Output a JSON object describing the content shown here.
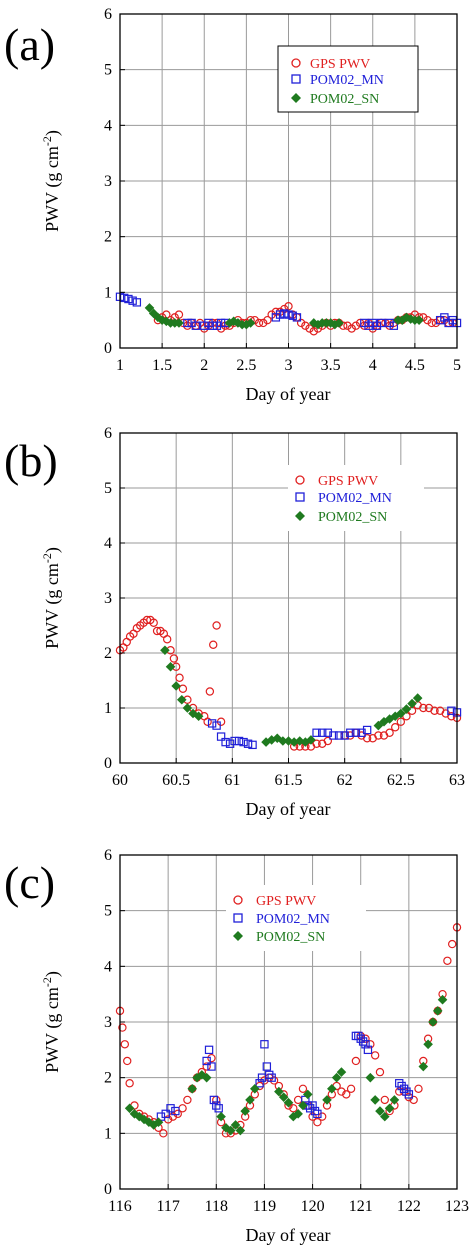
{
  "chart_data": [
    {
      "type": "scatter",
      "panel_label": "(a)",
      "xlabel": "Day of year",
      "ylabel": "PWV (g cm",
      "ylabel_exp": "-2",
      "ylabel_end": ")",
      "xlim": [
        1,
        5
      ],
      "ylim": [
        0,
        6
      ],
      "x_ticks": [
        1,
        1.5,
        2,
        2.5,
        3,
        3.5,
        4,
        4.5,
        5
      ],
      "y_ticks": [
        0,
        1,
        2,
        3,
        4,
        5,
        6
      ],
      "grid": true,
      "legend_position": "top-right",
      "series": [
        {
          "name": "GPS PWV",
          "color": "#e02020",
          "marker": "circle",
          "x": [
            1.45,
            1.5,
            1.55,
            1.6,
            1.65,
            1.7,
            1.75,
            1.8,
            1.85,
            1.9,
            1.95,
            2.0,
            2.05,
            2.1,
            2.15,
            2.2,
            2.25,
            2.3,
            2.35,
            2.4,
            2.45,
            2.5,
            2.55,
            2.6,
            2.65,
            2.7,
            2.75,
            2.8,
            2.85,
            2.9,
            2.95,
            3.0,
            3.05,
            3.1,
            3.15,
            3.2,
            3.25,
            3.3,
            3.35,
            3.4,
            3.45,
            3.5,
            3.55,
            3.6,
            3.65,
            3.7,
            3.75,
            3.8,
            3.85,
            3.9,
            3.95,
            4.0,
            4.05,
            4.1,
            4.15,
            4.2,
            4.25,
            4.3,
            4.35,
            4.4,
            4.45,
            4.5,
            4.55,
            4.6,
            4.65,
            4.7,
            4.75,
            4.8,
            4.85,
            4.9,
            4.95
          ],
          "y": [
            0.5,
            0.55,
            0.6,
            0.5,
            0.55,
            0.6,
            0.45,
            0.4,
            0.45,
            0.4,
            0.45,
            0.35,
            0.4,
            0.45,
            0.45,
            0.35,
            0.4,
            0.4,
            0.45,
            0.5,
            0.45,
            0.45,
            0.5,
            0.5,
            0.45,
            0.45,
            0.5,
            0.6,
            0.65,
            0.65,
            0.7,
            0.75,
            0.6,
            0.55,
            0.45,
            0.4,
            0.35,
            0.3,
            0.35,
            0.4,
            0.45,
            0.4,
            0.45,
            0.45,
            0.4,
            0.4,
            0.35,
            0.4,
            0.45,
            0.4,
            0.45,
            0.35,
            0.4,
            0.45,
            0.45,
            0.4,
            0.45,
            0.5,
            0.5,
            0.55,
            0.55,
            0.6,
            0.55,
            0.55,
            0.5,
            0.45,
            0.45,
            0.5,
            0.5,
            0.45,
            0.45
          ]
        },
        {
          "name": "POM02_MN",
          "color": "#2020d8",
          "marker": "square",
          "x": [
            1.0,
            1.05,
            1.1,
            1.15,
            1.2,
            1.8,
            1.85,
            1.9,
            2.0,
            2.05,
            2.1,
            2.15,
            2.2,
            2.25,
            2.85,
            2.9,
            2.95,
            3.0,
            3.05,
            3.1,
            3.9,
            3.95,
            4.0,
            4.05,
            4.1,
            4.2,
            4.25,
            4.8,
            4.85,
            4.9,
            4.95,
            5.0
          ],
          "y": [
            0.92,
            0.9,
            0.88,
            0.85,
            0.82,
            0.45,
            0.45,
            0.4,
            0.4,
            0.45,
            0.4,
            0.4,
            0.45,
            0.45,
            0.55,
            0.6,
            0.62,
            0.6,
            0.58,
            0.55,
            0.45,
            0.4,
            0.45,
            0.4,
            0.45,
            0.45,
            0.4,
            0.5,
            0.55,
            0.45,
            0.5,
            0.45
          ]
        },
        {
          "name": "POM02_SN",
          "color": "#1f7a1f",
          "marker": "diamond",
          "x": [
            1.35,
            1.4,
            1.45,
            1.5,
            1.55,
            1.6,
            1.65,
            1.7,
            2.3,
            2.35,
            2.4,
            2.45,
            2.5,
            2.55,
            3.3,
            3.35,
            3.4,
            3.45,
            3.5,
            3.55,
            3.6,
            4.3,
            4.35,
            4.4,
            4.45,
            4.5,
            4.55
          ],
          "y": [
            0.72,
            0.62,
            0.55,
            0.5,
            0.48,
            0.45,
            0.45,
            0.45,
            0.45,
            0.48,
            0.45,
            0.42,
            0.42,
            0.45,
            0.45,
            0.42,
            0.45,
            0.45,
            0.45,
            0.42,
            0.45,
            0.5,
            0.5,
            0.55,
            0.52,
            0.5,
            0.5
          ]
        }
      ]
    },
    {
      "type": "scatter",
      "panel_label": "(b)",
      "xlabel": "Day of year",
      "ylabel": "PWV (g cm",
      "ylabel_exp": "-2",
      "ylabel_end": ")",
      "xlim": [
        60,
        63
      ],
      "ylim": [
        0,
        6
      ],
      "x_ticks": [
        60,
        60.5,
        61,
        61.5,
        62,
        62.5,
        63
      ],
      "y_ticks": [
        0,
        1,
        2,
        3,
        4,
        5,
        6
      ],
      "grid": true,
      "legend_position": "top-right",
      "series": [
        {
          "name": "GPS PWV",
          "color": "#e02020",
          "marker": "circle",
          "x": [
            60.0,
            60.03,
            60.06,
            60.09,
            60.12,
            60.15,
            60.18,
            60.21,
            60.24,
            60.27,
            60.3,
            60.33,
            60.36,
            60.39,
            60.42,
            60.45,
            60.48,
            60.5,
            60.53,
            60.56,
            60.6,
            60.65,
            60.7,
            60.75,
            60.78,
            60.8,
            60.83,
            60.86,
            60.9,
            61.55,
            61.6,
            61.65,
            61.7,
            61.75,
            61.8,
            61.85,
            62.0,
            62.05,
            62.1,
            62.15,
            62.2,
            62.25,
            62.3,
            62.35,
            62.4,
            62.45,
            62.5,
            62.55,
            62.6,
            62.65,
            62.7,
            62.75,
            62.8,
            62.85,
            62.9,
            62.95,
            63.0
          ],
          "y": [
            2.05,
            2.1,
            2.2,
            2.3,
            2.35,
            2.45,
            2.5,
            2.55,
            2.6,
            2.6,
            2.55,
            2.4,
            2.4,
            2.35,
            2.25,
            2.05,
            1.9,
            1.75,
            1.55,
            1.35,
            1.15,
            1.0,
            0.9,
            0.85,
            0.75,
            1.3,
            2.15,
            2.5,
            0.75,
            0.3,
            0.3,
            0.3,
            0.3,
            0.35,
            0.35,
            0.4,
            0.5,
            0.5,
            0.55,
            0.5,
            0.45,
            0.45,
            0.5,
            0.5,
            0.55,
            0.65,
            0.75,
            0.85,
            0.95,
            1.05,
            1.0,
            1.0,
            0.95,
            0.95,
            0.9,
            0.85,
            0.82
          ]
        },
        {
          "name": "POM02_MN",
          "color": "#2020d8",
          "marker": "square",
          "x": [
            60.82,
            60.86,
            60.9,
            60.94,
            60.98,
            61.02,
            61.06,
            61.1,
            61.14,
            61.18,
            61.75,
            61.8,
            61.85,
            61.9,
            61.95,
            62.0,
            62.05,
            62.1,
            62.15,
            62.2,
            62.95,
            63.0
          ],
          "y": [
            0.72,
            0.68,
            0.48,
            0.38,
            0.35,
            0.4,
            0.4,
            0.38,
            0.35,
            0.33,
            0.55,
            0.55,
            0.55,
            0.5,
            0.5,
            0.5,
            0.55,
            0.55,
            0.55,
            0.6,
            0.95,
            0.92
          ]
        },
        {
          "name": "POM02_SN",
          "color": "#1f7a1f",
          "marker": "diamond",
          "x": [
            60.4,
            60.45,
            60.5,
            60.55,
            60.6,
            60.65,
            60.7,
            61.3,
            61.35,
            61.4,
            61.45,
            61.5,
            61.55,
            61.6,
            61.65,
            61.7,
            62.3,
            62.35,
            62.4,
            62.45,
            62.5,
            62.55,
            62.6,
            62.65
          ],
          "y": [
            2.05,
            1.75,
            1.4,
            1.15,
            1.0,
            0.9,
            0.85,
            0.38,
            0.42,
            0.45,
            0.4,
            0.4,
            0.38,
            0.4,
            0.38,
            0.42,
            0.68,
            0.75,
            0.8,
            0.85,
            0.9,
            0.98,
            1.08,
            1.18
          ]
        }
      ]
    },
    {
      "type": "scatter",
      "panel_label": "(c)",
      "xlabel": "Day of year",
      "ylabel": "PWV (g cm",
      "ylabel_exp": "-2",
      "ylabel_end": ")",
      "xlim": [
        116,
        123
      ],
      "ylim": [
        0,
        6
      ],
      "x_ticks": [
        116,
        117,
        118,
        119,
        120,
        121,
        122,
        123
      ],
      "y_ticks": [
        0,
        1,
        2,
        3,
        4,
        5,
        6
      ],
      "grid": true,
      "legend_position": "top-center",
      "series": [
        {
          "name": "GPS PWV",
          "color": "#e02020",
          "marker": "circle",
          "x": [
            116.0,
            116.05,
            116.1,
            116.15,
            116.2,
            116.3,
            116.4,
            116.5,
            116.6,
            116.7,
            116.8,
            116.9,
            117.0,
            117.1,
            117.2,
            117.3,
            117.4,
            117.5,
            117.6,
            117.7,
            117.8,
            117.9,
            118.0,
            118.1,
            118.2,
            118.3,
            118.4,
            118.5,
            118.6,
            118.7,
            118.8,
            118.9,
            119.0,
            119.1,
            119.2,
            119.3,
            119.4,
            119.5,
            119.6,
            119.7,
            119.8,
            119.9,
            120.0,
            120.1,
            120.2,
            120.3,
            120.4,
            120.5,
            120.6,
            120.7,
            120.8,
            120.9,
            121.0,
            121.1,
            121.2,
            121.3,
            121.4,
            121.5,
            121.6,
            121.7,
            121.8,
            121.9,
            122.0,
            122.1,
            122.2,
            122.3,
            122.4,
            122.5,
            122.6,
            122.7,
            122.8,
            122.9,
            123.0
          ],
          "y": [
            3.2,
            2.9,
            2.6,
            2.3,
            1.9,
            1.5,
            1.35,
            1.3,
            1.25,
            1.2,
            1.1,
            1.0,
            1.25,
            1.3,
            1.35,
            1.45,
            1.6,
            1.8,
            2.0,
            2.1,
            2.2,
            2.35,
            1.6,
            1.2,
            1.0,
            1.0,
            1.05,
            1.15,
            1.3,
            1.5,
            1.7,
            1.85,
            1.95,
            2.0,
            1.95,
            1.85,
            1.7,
            1.5,
            1.45,
            1.6,
            1.8,
            1.5,
            1.3,
            1.2,
            1.3,
            1.5,
            1.7,
            1.85,
            1.75,
            1.7,
            1.8,
            2.3,
            2.75,
            2.7,
            2.6,
            2.4,
            2.1,
            1.6,
            1.4,
            1.5,
            1.75,
            1.75,
            1.65,
            1.6,
            1.8,
            2.3,
            2.7,
            3.0,
            3.2,
            3.5,
            4.1,
            4.4,
            4.7
          ]
        },
        {
          "name": "POM02_MN",
          "color": "#2020d8",
          "marker": "square",
          "x": [
            116.85,
            116.95,
            117.05,
            117.15,
            117.8,
            117.85,
            117.9,
            117.95,
            118.0,
            118.05,
            118.9,
            118.95,
            119.0,
            119.05,
            119.1,
            119.15,
            119.85,
            119.9,
            119.95,
            120.0,
            120.05,
            120.1,
            120.9,
            120.95,
            121.0,
            121.05,
            121.1,
            121.15,
            121.8,
            121.85,
            121.9,
            121.95,
            122.0
          ],
          "y": [
            1.3,
            1.35,
            1.45,
            1.4,
            2.3,
            2.5,
            2.2,
            1.6,
            1.5,
            1.45,
            1.9,
            2.0,
            2.6,
            2.2,
            2.05,
            2.0,
            1.6,
            1.5,
            1.45,
            1.5,
            1.4,
            1.35,
            2.75,
            2.75,
            2.7,
            2.65,
            2.6,
            2.5,
            1.9,
            1.85,
            1.8,
            1.75,
            1.7
          ]
        },
        {
          "name": "POM02_SN",
          "color": "#1f7a1f",
          "marker": "diamond",
          "x": [
            116.2,
            116.3,
            116.4,
            116.5,
            116.6,
            116.7,
            116.8,
            117.5,
            117.6,
            117.7,
            117.8,
            118.1,
            118.2,
            118.3,
            118.4,
            118.5,
            118.6,
            118.7,
            118.8,
            119.3,
            119.4,
            119.5,
            119.6,
            119.7,
            119.8,
            119.9,
            120.3,
            120.4,
            120.5,
            120.6,
            121.2,
            121.3,
            121.4,
            121.5,
            121.6,
            121.7,
            122.3,
            122.4,
            122.5,
            122.6,
            122.7
          ],
          "y": [
            1.45,
            1.35,
            1.3,
            1.25,
            1.2,
            1.15,
            1.2,
            1.8,
            2.0,
            2.05,
            2.0,
            1.3,
            1.1,
            1.05,
            1.15,
            1.05,
            1.4,
            1.6,
            1.8,
            1.75,
            1.65,
            1.55,
            1.3,
            1.35,
            1.5,
            1.7,
            1.6,
            1.8,
            2.0,
            2.1,
            2.0,
            1.6,
            1.4,
            1.3,
            1.45,
            1.6,
            2.2,
            2.6,
            3.0,
            3.2,
            3.4
          ]
        }
      ]
    }
  ]
}
